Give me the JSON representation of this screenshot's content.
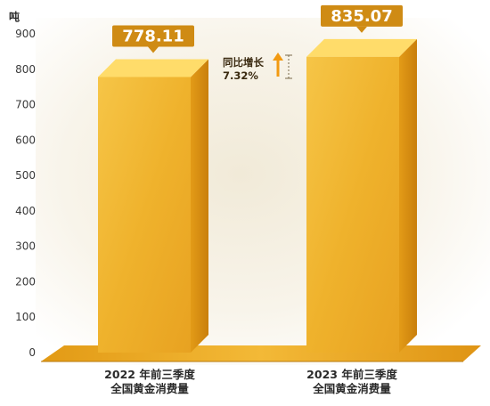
{
  "chart_data": {
    "type": "bar",
    "unit_label": "吨",
    "categories": [
      [
        "2022 年前三季度",
        "全国黄金消费量"
      ],
      [
        "2023 年前三季度",
        "全国黄金消费量"
      ]
    ],
    "values": [
      778.11,
      835.07
    ],
    "value_labels": [
      "778.11",
      "835.07"
    ],
    "ylim": [
      0,
      900
    ],
    "yticks": [
      0,
      100,
      200,
      300,
      400,
      500,
      600,
      700,
      800,
      900
    ],
    "grid": false,
    "annotation": {
      "label": "同比增长",
      "value": "7.32%"
    },
    "colors": {
      "bar_front": "#f2b431",
      "bar_side": "#d78f10",
      "bar_top": "#ffdc6a",
      "label_box": "#cf8b14",
      "arrow": "#f29a12"
    }
  }
}
